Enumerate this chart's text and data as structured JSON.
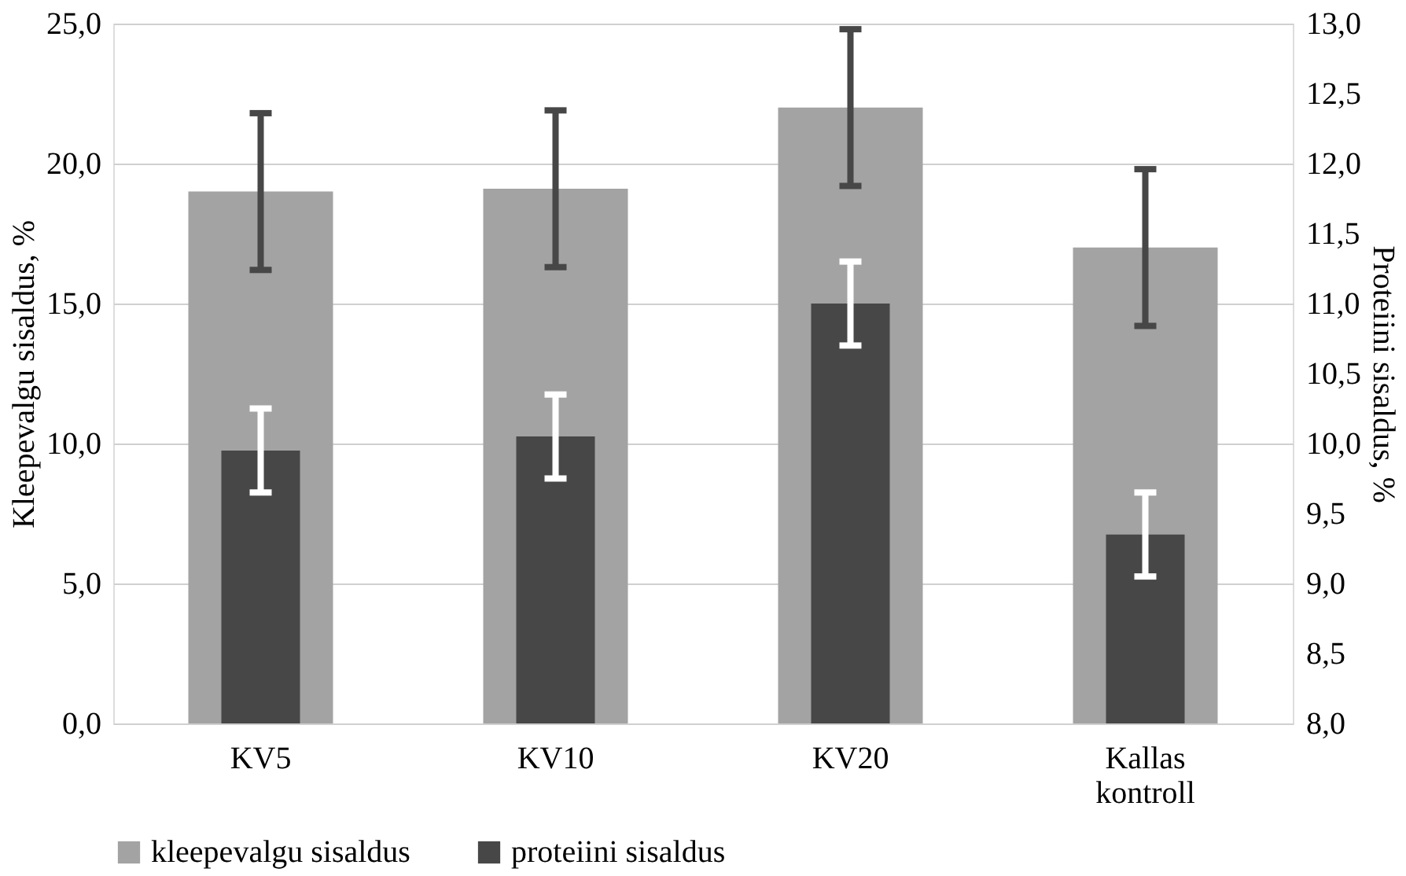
{
  "chart_data": {
    "type": "bar",
    "categories": [
      "KV5",
      "KV10",
      "KV20",
      "Kallas kontroll"
    ],
    "ylabel": "Kleepevalgu sisaldus, %",
    "y2label": "Proteiini sisaldus, %",
    "series": [
      {
        "name": "kleepevalgu sisaldus",
        "color": "#a3a3a3",
        "values": [
          19.0,
          19.1,
          22.0,
          17.0
        ],
        "errors": [
          2.8,
          2.8,
          2.8,
          2.8
        ]
      },
      {
        "name": "proteiini sisaldus",
        "color": "#474747",
        "axis": "y2",
        "values": [
          9.95,
          10.05,
          11.0,
          9.35
        ],
        "errors": [
          0.3,
          0.3,
          0.3,
          0.3
        ]
      }
    ],
    "ylim": [
      0,
      25
    ],
    "yticks": [
      {
        "value": 0,
        "label": "0,0"
      },
      {
        "value": 5,
        "label": "5,0"
      },
      {
        "value": 10,
        "label": "10,0"
      },
      {
        "value": 15,
        "label": "15,0"
      },
      {
        "value": 20,
        "label": "20,0"
      },
      {
        "value": 25,
        "label": "25,0"
      }
    ],
    "y2lim": [
      8,
      13
    ],
    "y2ticks": [
      {
        "value": 8,
        "label": "8,0"
      },
      {
        "value": 8.5,
        "label": "8,5"
      },
      {
        "value": 9,
        "label": "9,0"
      },
      {
        "value": 9.5,
        "label": "9,5"
      },
      {
        "value": 10,
        "label": "10,0"
      },
      {
        "value": 10.5,
        "label": "10,5"
      },
      {
        "value": 11,
        "label": "11,0"
      },
      {
        "value": 11.5,
        "label": "11,5"
      },
      {
        "value": 12,
        "label": "12,0"
      },
      {
        "value": 12.5,
        "label": "12,5"
      },
      {
        "value": 13,
        "label": "13,0"
      }
    ],
    "grid": "y",
    "legend": "bottom left"
  }
}
